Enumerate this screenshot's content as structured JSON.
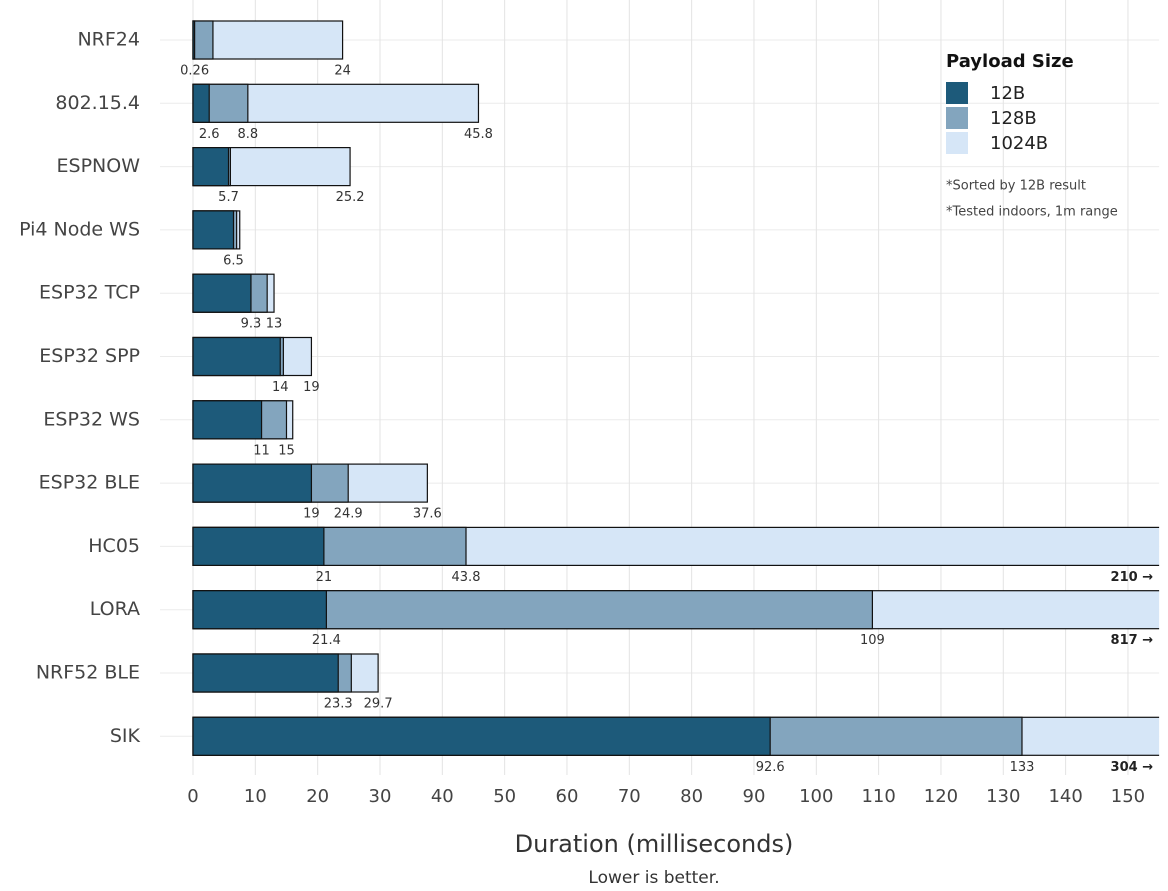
{
  "chart_data": {
    "type": "bar",
    "orientation": "horizontal",
    "overlap": true,
    "x_label": "Duration (milliseconds)",
    "subtitle": "Lower is better.",
    "legend_title": "Payload Size",
    "legend_position": "top-right",
    "notes": [
      "*Sorted by 12B result",
      "*Tested indoors, 1m range"
    ],
    "categories": [
      "NRF24",
      "802.15.4",
      "ESPNOW",
      "Pi4 Node WS",
      "ESP32 TCP",
      "ESP32 SPP",
      "ESP32 WS",
      "ESP32 BLE",
      "HC05",
      "LORA",
      "NRF52 BLE",
      "SIK"
    ],
    "series": [
      {
        "name": "12B",
        "color": "#1d5a7a",
        "values": [
          0.26,
          2.6,
          5.7,
          6.5,
          9.3,
          14,
          11,
          19,
          21,
          21.4,
          23.3,
          92.6
        ],
        "value_labels": [
          "0.26",
          "2.6",
          "5.7",
          "6.5",
          "9.3",
          "14",
          "11",
          "19",
          "21",
          "21.4",
          "23.3",
          "92.6"
        ]
      },
      {
        "name": "128B",
        "color": "#83a5be",
        "values": [
          3.2,
          8.8,
          6,
          7,
          11.9,
          14.5,
          15,
          24.9,
          43.8,
          109,
          25.4,
          133
        ],
        "value_labels": [
          null,
          "8.8",
          null,
          null,
          null,
          null,
          "15",
          "24.9",
          "43.8",
          "109",
          null,
          "133"
        ]
      },
      {
        "name": "1024B",
        "color": "#d6e6f7",
        "values": [
          24,
          45.8,
          25.2,
          7.5,
          13,
          19,
          16,
          37.6,
          210,
          817,
          29.7,
          304
        ],
        "value_labels": [
          "24",
          "45.8",
          "25.2",
          null,
          "13",
          "19",
          null,
          "37.6",
          "210 →",
          "817 →",
          "29.7",
          "304 →"
        ]
      }
    ],
    "xlim": [
      0,
      155
    ],
    "xticks": [
      0,
      10,
      20,
      30,
      40,
      50,
      60,
      70,
      80,
      90,
      100,
      110,
      120,
      130,
      140,
      150
    ],
    "grid": true
  }
}
